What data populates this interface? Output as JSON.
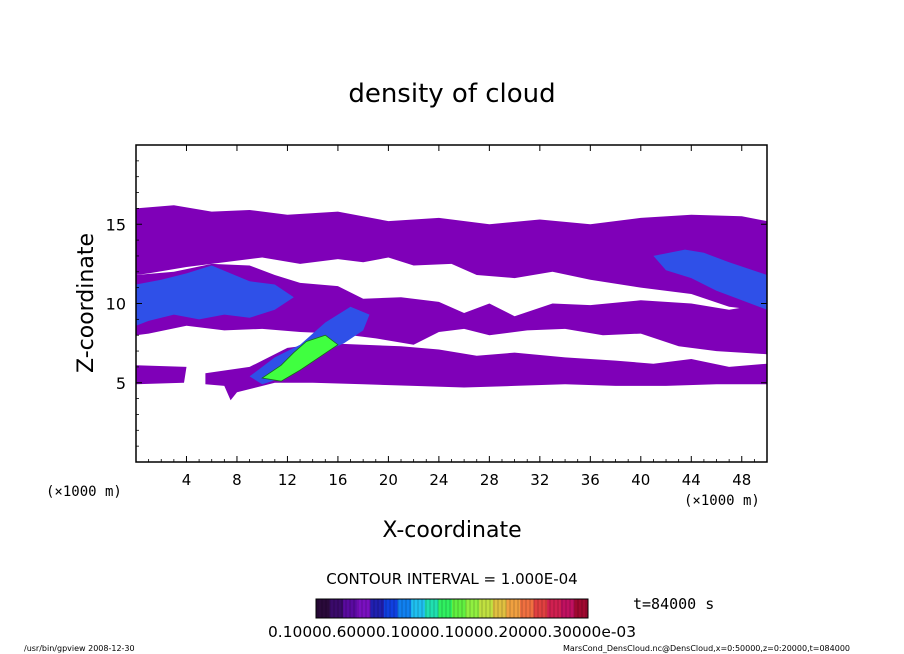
{
  "chart_data": {
    "type": "contour",
    "title": "density of cloud",
    "xlabel": "X-coordinate",
    "ylabel": "Z-coordinate",
    "x_unit": "(×1000 m)",
    "y_unit": "(×1000 m)",
    "xlim": [
      0,
      50
    ],
    "ylim": [
      0,
      20
    ],
    "xticks": [
      "4",
      "8",
      "12",
      "16",
      "20",
      "24",
      "28",
      "32",
      "36",
      "40",
      "44",
      "48"
    ],
    "yticks": [
      "5",
      "10",
      "15"
    ],
    "contour_interval": "CONTOUR INTERVAL = 1.000E-04",
    "time_label": "t=84000 s",
    "colorbar": {
      "labels_text": "0.10000.60000.10000.10000.20000.30000e-03",
      "colors": [
        "#2a0a3a",
        "#3a0a6a",
        "#5a0aa0",
        "#7a10c0",
        "#2020b0",
        "#1040e0",
        "#1080f0",
        "#20c0f0",
        "#20e0b0",
        "#30f060",
        "#60f040",
        "#90f040",
        "#c0e040",
        "#e0c040",
        "#f0a040",
        "#f07040",
        "#e04040",
        "#d02050",
        "#c01060",
        "#a00830"
      ]
    },
    "regions": [
      {
        "level": "low",
        "color": "#7f00b8",
        "desc": "cloud layer",
        "polygons": [
          [
            [
              0,
              16
            ],
            [
              3,
              16.2
            ],
            [
              6,
              15.8
            ],
            [
              9,
              15.9
            ],
            [
              12,
              15.6
            ],
            [
              16,
              15.8
            ],
            [
              20,
              15.2
            ],
            [
              24,
              15.4
            ],
            [
              28,
              15.0
            ],
            [
              32,
              15.3
            ],
            [
              36,
              15.0
            ],
            [
              40,
              15.4
            ],
            [
              44,
              15.6
            ],
            [
              48,
              15.5
            ],
            [
              50,
              15.2
            ],
            [
              50,
              9.5
            ],
            [
              47,
              9.8
            ],
            [
              44,
              10.6
            ],
            [
              40,
              11.0
            ],
            [
              36,
              11.5
            ],
            [
              33,
              12.0
            ],
            [
              30,
              11.6
            ],
            [
              27,
              11.8
            ],
            [
              25,
              12.5
            ],
            [
              22,
              12.4
            ],
            [
              20,
              12.9
            ],
            [
              18,
              12.6
            ],
            [
              16,
              12.8
            ],
            [
              13,
              12.5
            ],
            [
              10,
              12.9
            ],
            [
              7,
              12.6
            ],
            [
              4,
              12.3
            ],
            [
              1,
              11.9
            ],
            [
              0,
              11.8
            ]
          ],
          [
            [
              0,
              11.8
            ],
            [
              3,
              12.0
            ],
            [
              6,
              12.5
            ],
            [
              9,
              12.4
            ],
            [
              11,
              11.8
            ],
            [
              13,
              11.3
            ],
            [
              16,
              11.1
            ],
            [
              18,
              10.3
            ],
            [
              21,
              10.4
            ],
            [
              24,
              10.1
            ],
            [
              26,
              9.4
            ],
            [
              28,
              10.0
            ],
            [
              30,
              9.2
            ],
            [
              33,
              10.0
            ],
            [
              36,
              9.9
            ],
            [
              40,
              10.2
            ],
            [
              44,
              10.0
            ],
            [
              47,
              9.6
            ],
            [
              50,
              10.0
            ],
            [
              50,
              6.8
            ],
            [
              46,
              7.0
            ],
            [
              43,
              7.3
            ],
            [
              40,
              8.1
            ],
            [
              37,
              8.0
            ],
            [
              34,
              8.4
            ],
            [
              31,
              8.3
            ],
            [
              28,
              8.0
            ],
            [
              26,
              8.4
            ],
            [
              24,
              8.2
            ],
            [
              22,
              7.4
            ],
            [
              19,
              7.8
            ],
            [
              16,
              8.1
            ],
            [
              13,
              8.2
            ],
            [
              10,
              8.4
            ],
            [
              7,
              8.3
            ],
            [
              4,
              8.6
            ],
            [
              1,
              8.1
            ],
            [
              0,
              8.0
            ]
          ],
          [
            [
              0,
              6.1
            ],
            [
              4,
              6.0
            ],
            [
              3.8,
              5.0
            ],
            [
              0,
              4.9
            ]
          ],
          [
            [
              5.5,
              5.6
            ],
            [
              9,
              6.0
            ],
            [
              12,
              7.2
            ],
            [
              15,
              7.5
            ],
            [
              18,
              7.4
            ],
            [
              21,
              7.3
            ],
            [
              24,
              7.1
            ],
            [
              27,
              6.7
            ],
            [
              30,
              6.9
            ],
            [
              34,
              6.6
            ],
            [
              38,
              6.4
            ],
            [
              41,
              6.2
            ],
            [
              44,
              6.5
            ],
            [
              47,
              6.0
            ],
            [
              50,
              6.2
            ],
            [
              50,
              4.9
            ],
            [
              46,
              4.9
            ],
            [
              42,
              4.8
            ],
            [
              38,
              4.8
            ],
            [
              34,
              4.9
            ],
            [
              30,
              4.8
            ],
            [
              26,
              4.7
            ],
            [
              22,
              4.8
            ],
            [
              18,
              4.9
            ],
            [
              14,
              5.0
            ],
            [
              11,
              5.0
            ],
            [
              8,
              4.4
            ],
            [
              7.5,
              3.9
            ],
            [
              7,
              4.8
            ],
            [
              5.5,
              4.9
            ]
          ]
        ]
      },
      {
        "level": "mid",
        "color": "#2f50e8",
        "polygons": [
          [
            [
              0,
              11.2
            ],
            [
              2,
              11.5
            ],
            [
              4,
              11.9
            ],
            [
              6,
              12.4
            ],
            [
              7.5,
              11.9
            ],
            [
              9,
              11.4
            ],
            [
              11,
              11.2
            ],
            [
              12.5,
              10.4
            ],
            [
              11,
              9.6
            ],
            [
              9,
              9.1
            ],
            [
              7,
              9.3
            ],
            [
              5,
              9.0
            ],
            [
              3,
              9.3
            ],
            [
              1,
              8.9
            ],
            [
              0,
              8.6
            ]
          ],
          [
            [
              9,
              5.4
            ],
            [
              11,
              6.6
            ],
            [
              13,
              7.4
            ],
            [
              15,
              8.8
            ],
            [
              17,
              9.8
            ],
            [
              18.5,
              9.3
            ],
            [
              18,
              8.3
            ],
            [
              16.5,
              7.5
            ],
            [
              14,
              6.6
            ],
            [
              12,
              5.4
            ],
            [
              10,
              4.9
            ]
          ],
          [
            [
              41,
              13.0
            ],
            [
              43.5,
              13.4
            ],
            [
              45,
              13.2
            ],
            [
              47,
              12.6
            ],
            [
              48.5,
              12.2
            ],
            [
              50,
              11.8
            ],
            [
              50,
              9.6
            ],
            [
              48,
              10.2
            ],
            [
              46,
              10.8
            ],
            [
              44,
              11.6
            ],
            [
              42,
              12.1
            ]
          ]
        ]
      },
      {
        "level": "high",
        "color": "#40ff40",
        "polygons": [
          [
            [
              10,
              5.3
            ],
            [
              11.5,
              6.1
            ],
            [
              12.5,
              6.9
            ],
            [
              13.5,
              7.6
            ],
            [
              15,
              8.0
            ],
            [
              16,
              7.4
            ],
            [
              14.5,
              6.6
            ],
            [
              13,
              5.8
            ],
            [
              11.5,
              5.1
            ]
          ]
        ]
      }
    ]
  },
  "footer": {
    "left_text": "/usr/bin/gpview   2008-12-30",
    "right_text": "MarsCond_DensCloud.nc@DensCloud,x=0:50000,z=0:20000,t=084000"
  }
}
